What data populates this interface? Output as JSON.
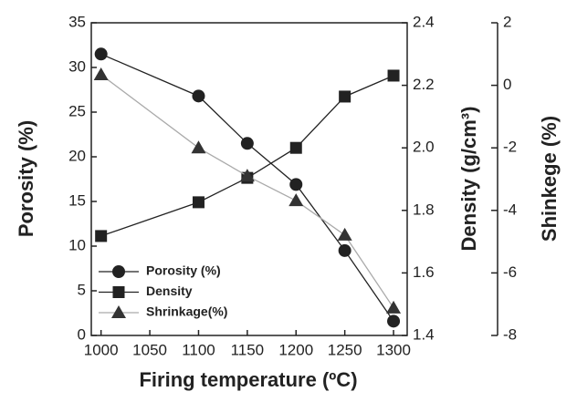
{
  "chart_data": {
    "type": "line",
    "x_label": "Firing temperature (ºC)",
    "y_label": "Porosity (%)",
    "y2_label": "Density (g/cm³)",
    "y3_label": "Shinkege (%)",
    "x": [
      1000,
      1100,
      1150,
      1200,
      1250,
      1300
    ],
    "xlim": [
      990,
      1314
    ],
    "xticks": [
      1000,
      1050,
      1100,
      1150,
      1200,
      1250,
      1300
    ],
    "ylim": [
      0,
      35
    ],
    "yticks": [
      0,
      5,
      10,
      15,
      20,
      25,
      30,
      35
    ],
    "y2lim": [
      1.4,
      2.4
    ],
    "y2ticks": [
      1.4,
      1.6,
      1.8,
      {
        "value": 2.0,
        "label": "2.0"
      },
      2.2,
      2.4
    ],
    "y3lim": [
      -8,
      2
    ],
    "y3ticks": [
      -8,
      -6,
      -4,
      -2,
      0,
      2
    ],
    "legend": "lower left",
    "series": [
      {
        "name": "Porosity (%)",
        "color": "#222222",
        "marker": "circle",
        "axis": "y",
        "values": [
          31.5,
          26.8,
          21.5,
          16.9,
          9.5,
          1.6
        ]
      },
      {
        "name": "Density",
        "color": "#222222",
        "marker": "square",
        "axis": "y2",
        "values": [
          1.718,
          1.826,
          1.904,
          2.0,
          2.164,
          2.231
        ]
      },
      {
        "name": "Shrinkage(%)",
        "color": "#aaaaaa",
        "marker_color": "#333333",
        "marker": "triangle",
        "axis": "y3",
        "values": [
          0.34,
          -2.0,
          -2.9,
          -3.69,
          -4.79,
          -7.12
        ]
      }
    ]
  }
}
